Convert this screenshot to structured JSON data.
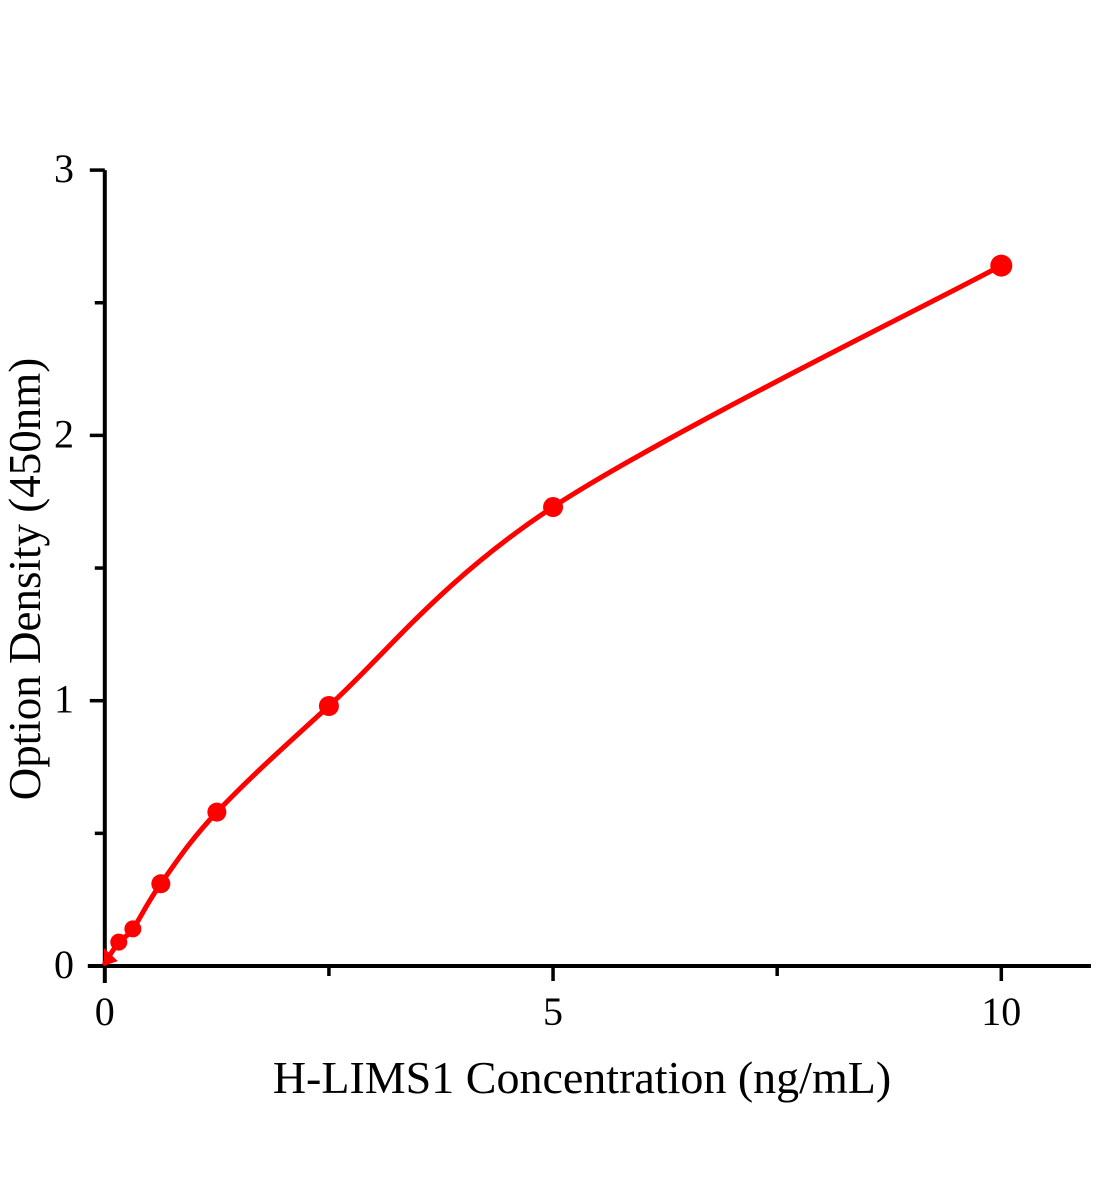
{
  "figure": {
    "background": "#ffffff",
    "axis_color": "#000000",
    "accent_color": "#ff0000"
  },
  "chart_data": {
    "type": "scatter",
    "title": "",
    "xlabel": "H-LIMS1 Concentration（ng/mL）",
    "ylabel": "Option Density（450nm）",
    "x": [
      0.156,
      0.313,
      0.625,
      1.25,
      2.5,
      5,
      10
    ],
    "y": [
      0.09,
      0.14,
      0.31,
      0.58,
      0.98,
      1.73,
      2.64
    ],
    "curve_start": {
      "x": 0,
      "y": 0.01
    },
    "xlim": [
      0,
      11
    ],
    "ylim": [
      0,
      3
    ],
    "x_major_ticks": [
      0,
      5,
      10
    ],
    "x_minor_ticks": [
      2.5,
      7.5
    ],
    "y_major_ticks": [
      0,
      1,
      2,
      3
    ],
    "y_minor_ticks": [
      0.5,
      1.5,
      2.5
    ],
    "grid": false,
    "legend": "none",
    "line_color": "#ff0000",
    "marker_color": "#ff0000"
  }
}
